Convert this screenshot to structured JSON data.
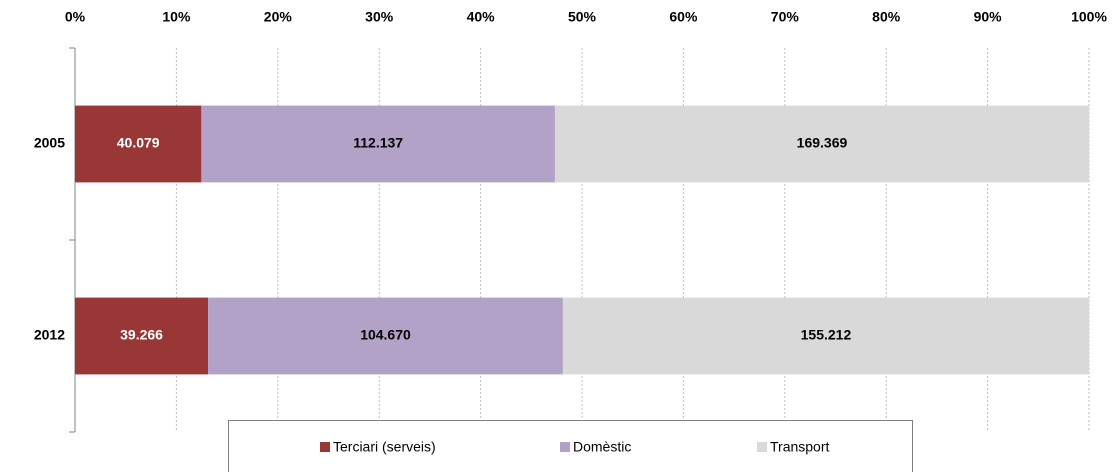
{
  "chart_data": {
    "type": "bar",
    "orientation": "horizontal",
    "stacked": "percent",
    "categories": [
      "2005",
      "2012"
    ],
    "series": [
      {
        "name": "Terciari (serveis)",
        "color": "#983735",
        "label_color": "#ffffff",
        "values": [
          40079,
          39266
        ],
        "value_labels": [
          "40.079",
          "39.266"
        ]
      },
      {
        "name": "Domèstic",
        "color": "#b2a2c7",
        "label_color": "#000000",
        "values": [
          112137,
          104670
        ],
        "value_labels": [
          "112.137",
          "104.670"
        ]
      },
      {
        "name": "Transport",
        "color": "#d9d9d9",
        "label_color": "#000000",
        "values": [
          169369,
          155212
        ],
        "value_labels": [
          "169.369",
          "155.212"
        ]
      }
    ],
    "xlim": [
      0,
      100
    ],
    "xticks": [
      {
        "value": 0,
        "label": "0%"
      },
      {
        "value": 10,
        "label": "10%"
      },
      {
        "value": 20,
        "label": "20%"
      },
      {
        "value": 30,
        "label": "30%"
      },
      {
        "value": 40,
        "label": "40%"
      },
      {
        "value": 50,
        "label": "50%"
      },
      {
        "value": 60,
        "label": "60%"
      },
      {
        "value": 70,
        "label": "70%"
      },
      {
        "value": 80,
        "label": "80%"
      },
      {
        "value": 90,
        "label": "90%"
      },
      {
        "value": 100,
        "label": "100%"
      }
    ],
    "grid": true,
    "legend": "bottom"
  }
}
